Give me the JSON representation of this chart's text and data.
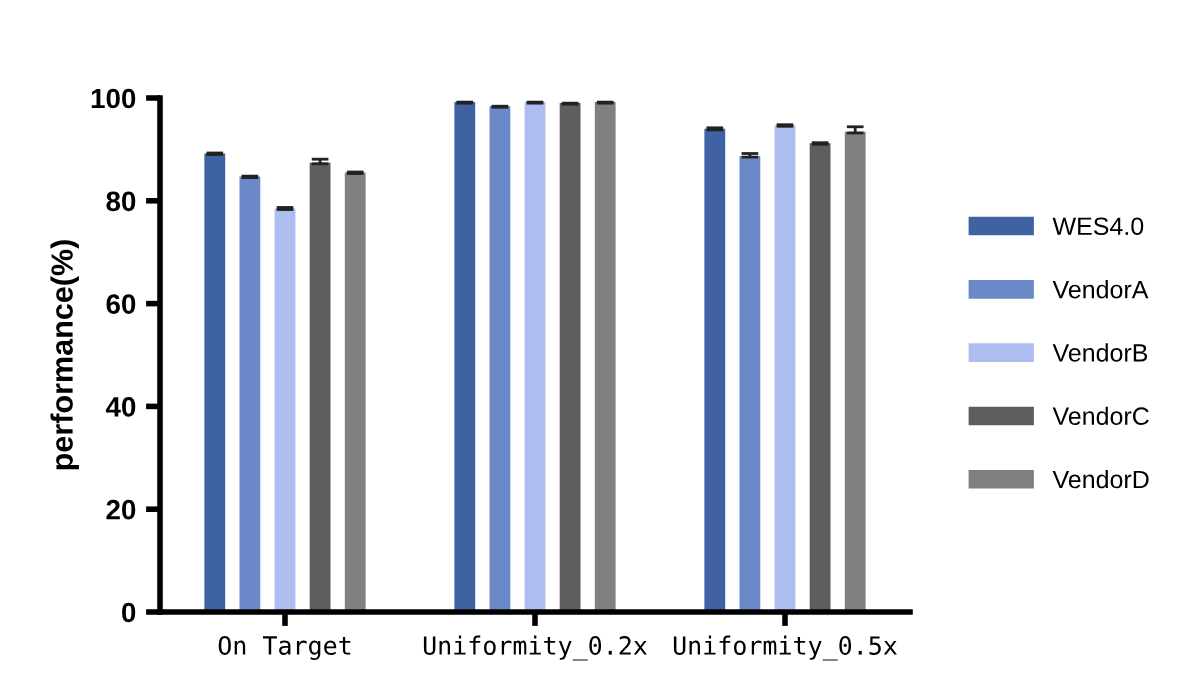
{
  "chart_data": {
    "type": "bar",
    "ylabel": "performance(%)",
    "categories": [
      "On Target",
      "Uniformity_0.2x",
      "Uniformity_0.5x"
    ],
    "series": [
      {
        "name": "WES4.0",
        "color": "#3f62a3",
        "values": [
          89,
          99,
          93.8
        ],
        "errors": [
          0.3,
          0.2,
          0.4
        ]
      },
      {
        "name": "VendorA",
        "color": "#6b89c9",
        "values": [
          84.5,
          98.2,
          88.5
        ],
        "errors": [
          0.3,
          0.2,
          0.7
        ]
      },
      {
        "name": "VendorB",
        "color": "#adbdf0",
        "values": [
          78.3,
          99,
          94.5
        ],
        "errors": [
          0.4,
          0.2,
          0.3
        ]
      },
      {
        "name": "VendorC",
        "color": "#5e5e5e",
        "values": [
          87.2,
          98.8,
          91
        ],
        "errors": [
          0.9,
          0.2,
          0.3
        ]
      },
      {
        "name": "VendorD",
        "color": "#808080",
        "values": [
          85.3,
          99,
          93.2
        ],
        "errors": [
          0.3,
          0.2,
          1.2
        ]
      }
    ],
    "ylim": [
      0,
      100
    ],
    "yticks": [
      0,
      20,
      40,
      60,
      80,
      100
    ],
    "grid": false,
    "legend": "right"
  }
}
